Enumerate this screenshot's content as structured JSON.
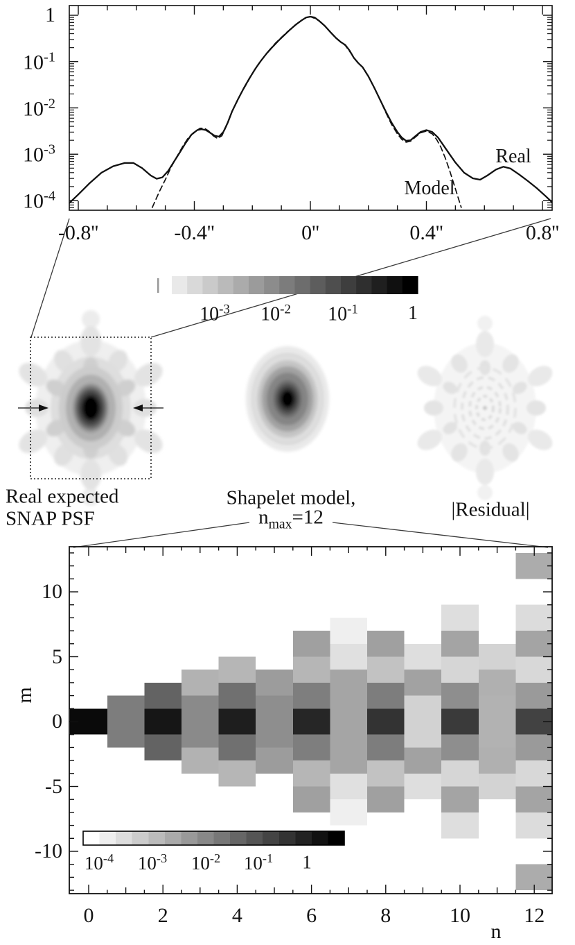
{
  "page": {
    "background": "#ffffff",
    "figure_type": "scientific-figure"
  },
  "colors": {
    "axis": "#111111",
    "curve": "#111111",
    "callout": "#3a3a3a",
    "label": "#141414"
  },
  "top_plot": {
    "y_tick_labels": [
      {
        "base": "1",
        "exp": null
      },
      {
        "base": "10",
        "exp": "-1"
      },
      {
        "base": "10",
        "exp": "-2"
      },
      {
        "base": "10",
        "exp": "-3"
      },
      {
        "base": "10",
        "exp": "-4"
      }
    ],
    "x_tick_labels": [
      "-0.8''",
      "-0.4''",
      "0''",
      "0.4''",
      "0.8''"
    ],
    "annotation_real": "Real",
    "annotation_model": "Model"
  },
  "middle": {
    "colorbar_labels": [
      {
        "base": "10",
        "exp": "-3"
      },
      {
        "base": "10",
        "exp": "-2"
      },
      {
        "base": "10",
        "exp": "-1"
      },
      {
        "base": "1",
        "exp": null
      }
    ],
    "captions": {
      "psf_line1": "Real expected",
      "psf_line2": "SNAP PSF",
      "model_line1": "Shapelet model,",
      "model_n": "n",
      "model_sub": "max",
      "model_eq": "=12",
      "residual": "|Residual|"
    }
  },
  "bottom_plot": {
    "xlabel": "n",
    "ylabel": "m",
    "x_tick_labels": [
      "0",
      "2",
      "4",
      "6",
      "8",
      "10",
      "12"
    ],
    "x_tick_values": [
      0,
      2,
      4,
      6,
      8,
      10,
      12
    ],
    "y_tick_labels": [
      "10",
      "5",
      "0",
      "-5",
      "-10"
    ],
    "y_tick_values": [
      10,
      5,
      0,
      -5,
      -10
    ],
    "colorbar_labels": [
      {
        "base": "10",
        "exp": "-4"
      },
      {
        "base": "10",
        "exp": "-3"
      },
      {
        "base": "10",
        "exp": "-2"
      },
      {
        "base": "10",
        "exp": "-1"
      },
      {
        "base": "1",
        "exp": null
      }
    ]
  },
  "chart_data": [
    {
      "type": "line",
      "title": "PSF cut profile, log intensity vs position",
      "x_ticks": [
        -0.8,
        -0.4,
        0,
        0.4,
        0.8
      ],
      "x_unit": "arcsec",
      "y_scale": "log10",
      "y_ticks_log10": [
        0,
        -1,
        -2,
        -3,
        -4
      ],
      "xlim": [
        -0.84,
        0.84
      ],
      "ylim_log10": [
        -4.2,
        0.21
      ],
      "grid": false,
      "series": [
        {
          "name": "Real",
          "style": "solid",
          "points_x_log10y": [
            [
              -0.83,
              -4.05
            ],
            [
              -0.8,
              -3.87
            ],
            [
              -0.76,
              -3.62
            ],
            [
              -0.72,
              -3.4
            ],
            [
              -0.68,
              -3.26
            ],
            [
              -0.64,
              -3.19
            ],
            [
              -0.61,
              -3.19
            ],
            [
              -0.58,
              -3.3
            ],
            [
              -0.55,
              -3.46
            ],
            [
              -0.53,
              -3.53
            ],
            [
              -0.51,
              -3.5
            ],
            [
              -0.49,
              -3.36
            ],
            [
              -0.47,
              -3.16
            ],
            [
              -0.45,
              -2.96
            ],
            [
              -0.43,
              -2.76
            ],
            [
              -0.41,
              -2.58
            ],
            [
              -0.39,
              -2.48
            ],
            [
              -0.375,
              -2.46
            ],
            [
              -0.36,
              -2.48
            ],
            [
              -0.345,
              -2.54
            ],
            [
              -0.33,
              -2.6
            ],
            [
              -0.315,
              -2.62
            ],
            [
              -0.3,
              -2.52
            ],
            [
              -0.285,
              -2.32
            ],
            [
              -0.27,
              -2.08
            ],
            [
              -0.25,
              -1.82
            ],
            [
              -0.23,
              -1.58
            ],
            [
              -0.21,
              -1.36
            ],
            [
              -0.19,
              -1.16
            ],
            [
              -0.17,
              -0.98
            ],
            [
              -0.15,
              -0.82
            ],
            [
              -0.13,
              -0.68
            ],
            [
              -0.11,
              -0.55
            ],
            [
              -0.09,
              -0.43
            ],
            [
              -0.07,
              -0.31
            ],
            [
              -0.05,
              -0.2
            ],
            [
              -0.03,
              -0.11
            ],
            [
              -0.015,
              -0.05
            ],
            [
              0,
              -0.03
            ],
            [
              0.015,
              -0.05
            ],
            [
              0.03,
              -0.12
            ],
            [
              0.05,
              -0.23
            ],
            [
              0.07,
              -0.37
            ],
            [
              0.09,
              -0.5
            ],
            [
              0.105,
              -0.58
            ],
            [
              0.12,
              -0.64
            ],
            [
              0.135,
              -0.76
            ],
            [
              0.15,
              -0.92
            ],
            [
              0.165,
              -1.03
            ],
            [
              0.18,
              -1.12
            ],
            [
              0.2,
              -1.32
            ],
            [
              0.22,
              -1.56
            ],
            [
              0.24,
              -1.82
            ],
            [
              0.26,
              -2.08
            ],
            [
              0.28,
              -2.32
            ],
            [
              0.3,
              -2.52
            ],
            [
              0.315,
              -2.64
            ],
            [
              0.33,
              -2.71
            ],
            [
              0.345,
              -2.7
            ],
            [
              0.36,
              -2.62
            ],
            [
              0.38,
              -2.52
            ],
            [
              0.4,
              -2.48
            ],
            [
              0.42,
              -2.52
            ],
            [
              0.44,
              -2.64
            ],
            [
              0.46,
              -2.82
            ],
            [
              0.48,
              -3.0
            ],
            [
              0.5,
              -3.18
            ],
            [
              0.53,
              -3.4
            ],
            [
              0.56,
              -3.52
            ],
            [
              0.585,
              -3.55
            ],
            [
              0.61,
              -3.46
            ],
            [
              0.64,
              -3.33
            ],
            [
              0.665,
              -3.27
            ],
            [
              0.69,
              -3.31
            ],
            [
              0.72,
              -3.44
            ],
            [
              0.75,
              -3.58
            ],
            [
              0.78,
              -3.73
            ],
            [
              0.81,
              -3.9
            ],
            [
              0.835,
              -4.05
            ]
          ]
        },
        {
          "name": "Model",
          "style": "dashed",
          "points_x_log10y": [
            [
              -0.545,
              -4.15
            ],
            [
              -0.52,
              -3.8
            ],
            [
              -0.5,
              -3.55
            ],
            [
              -0.48,
              -3.28
            ],
            [
              -0.46,
              -3.05
            ],
            [
              -0.44,
              -2.83
            ],
            [
              -0.42,
              -2.64
            ],
            [
              -0.4,
              -2.52
            ],
            [
              -0.38,
              -2.44
            ],
            [
              -0.365,
              -2.44
            ],
            [
              -0.35,
              -2.5
            ],
            [
              -0.335,
              -2.6
            ],
            [
              -0.32,
              -2.66
            ],
            [
              -0.305,
              -2.6
            ],
            [
              -0.29,
              -2.4
            ],
            [
              -0.275,
              -2.15
            ],
            [
              -0.26,
              -1.95
            ],
            [
              -0.24,
              -1.7
            ],
            [
              -0.22,
              -1.48
            ],
            [
              -0.2,
              -1.26
            ],
            [
              -0.18,
              -1.06
            ],
            [
              -0.16,
              -0.9
            ],
            [
              -0.14,
              -0.74
            ],
            [
              -0.12,
              -0.6
            ],
            [
              -0.1,
              -0.48
            ],
            [
              -0.08,
              -0.36
            ],
            [
              -0.06,
              -0.26
            ],
            [
              -0.04,
              -0.15
            ],
            [
              -0.02,
              -0.07
            ],
            [
              0,
              -0.03
            ],
            [
              0.02,
              -0.08
            ],
            [
              0.04,
              -0.17
            ],
            [
              0.06,
              -0.3
            ],
            [
              0.08,
              -0.44
            ],
            [
              0.1,
              -0.55
            ],
            [
              0.12,
              -0.65
            ],
            [
              0.14,
              -0.82
            ],
            [
              0.16,
              -1.0
            ],
            [
              0.18,
              -1.12
            ],
            [
              0.2,
              -1.32
            ],
            [
              0.22,
              -1.56
            ],
            [
              0.24,
              -1.82
            ],
            [
              0.26,
              -2.1
            ],
            [
              0.28,
              -2.36
            ],
            [
              0.3,
              -2.56
            ],
            [
              0.315,
              -2.68
            ],
            [
              0.33,
              -2.74
            ],
            [
              0.345,
              -2.72
            ],
            [
              0.36,
              -2.64
            ],
            [
              0.38,
              -2.54
            ],
            [
              0.4,
              -2.5
            ],
            [
              0.42,
              -2.56
            ],
            [
              0.435,
              -2.68
            ],
            [
              0.45,
              -2.85
            ],
            [
              0.465,
              -3.08
            ],
            [
              0.48,
              -3.35
            ],
            [
              0.5,
              -3.75
            ],
            [
              0.52,
              -4.15
            ]
          ]
        }
      ]
    },
    {
      "type": "heatmap",
      "title": "Shapelet coefficient magnitudes |f_nm|",
      "xlabel": "n",
      "ylabel": "m",
      "xlim": [
        -0.5,
        12.5
      ],
      "ylim": [
        -13.3,
        13.3
      ],
      "colorbar": {
        "scale": "log10",
        "min": 0.0001,
        "max": 1,
        "tick_values": [
          0.0001,
          0.001,
          0.01,
          0.1,
          1
        ],
        "orientation": "horizontal",
        "position": "inside-lower-left"
      },
      "cell_size": {
        "n_width": 1,
        "m_height": 2
      },
      "cells_n_m_log10": [
        [
          0,
          0,
          -0.16
        ],
        [
          1,
          1,
          -1.96
        ],
        [
          1,
          -1,
          -1.96
        ],
        [
          2,
          0,
          -0.35
        ],
        [
          2,
          2,
          -1.55
        ],
        [
          2,
          -2,
          -1.55
        ],
        [
          3,
          1,
          -2.16
        ],
        [
          3,
          -1,
          -2.16
        ],
        [
          3,
          3,
          -2.79
        ],
        [
          3,
          -3,
          -2.79
        ],
        [
          4,
          0,
          -0.47
        ],
        [
          4,
          2,
          -1.76
        ],
        [
          4,
          -2,
          -1.76
        ],
        [
          4,
          4,
          -2.85
        ],
        [
          4,
          -4,
          -2.85
        ],
        [
          5,
          1,
          -2.23
        ],
        [
          5,
          -1,
          -2.23
        ],
        [
          5,
          3,
          -2.45
        ],
        [
          5,
          -3,
          -2.45
        ],
        [
          6,
          0,
          -0.6
        ],
        [
          6,
          2,
          -1.98
        ],
        [
          6,
          -2,
          -1.98
        ],
        [
          6,
          4,
          -2.85
        ],
        [
          6,
          -4,
          -2.85
        ],
        [
          6,
          6,
          -2.51
        ],
        [
          6,
          -6,
          -2.51
        ],
        [
          7,
          1,
          -2.59
        ],
        [
          7,
          -1,
          -2.59
        ],
        [
          7,
          3,
          -2.59
        ],
        [
          7,
          -3,
          -2.59
        ],
        [
          7,
          5,
          -3.51
        ],
        [
          7,
          -5,
          -3.51
        ],
        [
          7,
          7,
          -3.75
        ],
        [
          7,
          -7,
          -3.75
        ],
        [
          8,
          0,
          -0.8
        ],
        [
          8,
          2,
          -1.96
        ],
        [
          8,
          -2,
          -1.96
        ],
        [
          8,
          4,
          -3.04
        ],
        [
          8,
          -4,
          -3.04
        ],
        [
          8,
          6,
          -2.51
        ],
        [
          8,
          -6,
          -2.51
        ],
        [
          9,
          1,
          -3.29
        ],
        [
          9,
          -1,
          -3.29
        ],
        [
          9,
          3,
          -2.54
        ],
        [
          9,
          -3,
          -2.54
        ],
        [
          9,
          5,
          -3.48
        ],
        [
          9,
          -5,
          -3.48
        ],
        [
          10,
          0,
          -0.91
        ],
        [
          10,
          2,
          -2.23
        ],
        [
          10,
          -2,
          -2.23
        ],
        [
          10,
          4,
          -3.36
        ],
        [
          10,
          -4,
          -3.36
        ],
        [
          10,
          6,
          -2.57
        ],
        [
          10,
          -6,
          -2.57
        ],
        [
          10,
          8,
          -3.48
        ],
        [
          10,
          -8,
          -3.48
        ],
        [
          11,
          1,
          -2.79
        ],
        [
          11,
          -1,
          -2.79
        ],
        [
          11,
          3,
          -2.76
        ],
        [
          11,
          -3,
          -2.76
        ],
        [
          11,
          5,
          -3.31
        ],
        [
          11,
          -5,
          -3.31
        ],
        [
          12,
          0,
          -1.04
        ],
        [
          12,
          2,
          -2.42
        ],
        [
          12,
          -2,
          -2.42
        ],
        [
          12,
          4,
          -3.39
        ],
        [
          12,
          -4,
          -3.39
        ],
        [
          12,
          6,
          -2.57
        ],
        [
          12,
          -6,
          -2.57
        ],
        [
          12,
          8,
          -3.45
        ],
        [
          12,
          -8,
          -3.45
        ],
        [
          12,
          12,
          -2.7
        ],
        [
          12,
          -12,
          -2.7
        ]
      ]
    },
    {
      "type": "colorbar",
      "title": "Image grayscale colorbar (middle panel)",
      "scale": "log10",
      "min": 0.00025,
      "max": 1,
      "tick_values": [
        0.001,
        0.01,
        0.1,
        1
      ]
    }
  ]
}
